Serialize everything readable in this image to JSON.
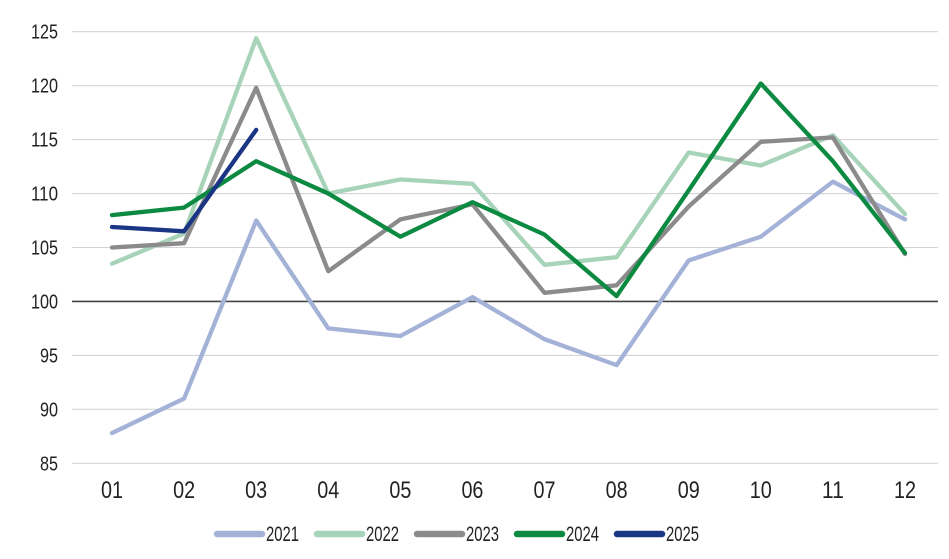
{
  "chart_data": {
    "type": "line",
    "title": "",
    "xlabel": "",
    "ylabel": "",
    "categories": [
      "01",
      "02",
      "03",
      "04",
      "05",
      "06",
      "07",
      "08",
      "09",
      "10",
      "11",
      "12"
    ],
    "series": [
      {
        "name": "2021",
        "color": "#a4b2d8",
        "values": [
          87.8,
          91.0,
          107.5,
          97.5,
          96.8,
          100.4,
          96.5,
          94.1,
          103.8,
          106.0,
          111.1,
          107.6
        ]
      },
      {
        "name": "2022",
        "color": "#a7d4b8",
        "values": [
          103.5,
          106.3,
          124.4,
          110.0,
          111.3,
          110.9,
          103.4,
          104.1,
          113.8,
          112.6,
          115.4,
          108.1
        ]
      },
      {
        "name": "2023",
        "color": "#8b8b8b",
        "values": [
          105.0,
          105.4,
          119.8,
          102.8,
          107.6,
          109.0,
          100.8,
          101.5,
          108.8,
          114.8,
          115.2,
          104.4
        ]
      },
      {
        "name": "2024",
        "color": "#0c8a41",
        "values": [
          108.0,
          108.7,
          113.0,
          110.0,
          106.0,
          109.2,
          106.2,
          100.5,
          110.3,
          120.2,
          113.0,
          104.5
        ]
      },
      {
        "name": "2025",
        "color": "#1b3585",
        "values": [
          106.9,
          106.5,
          115.9
        ]
      }
    ],
    "ylim": [
      85,
      125
    ],
    "y_ticks": [
      85,
      90,
      95,
      100,
      105,
      110,
      115,
      120,
      125
    ],
    "baseline_value": 100,
    "grid": "horizontal",
    "legend_position": "bottom",
    "legend_labels": [
      "2021",
      "2022",
      "2023",
      "2024",
      "2025"
    ]
  },
  "colors": {
    "grid": "#d4d4d4",
    "baseline": "#454545",
    "tick_text": "#222222",
    "background": "#ffffff"
  }
}
